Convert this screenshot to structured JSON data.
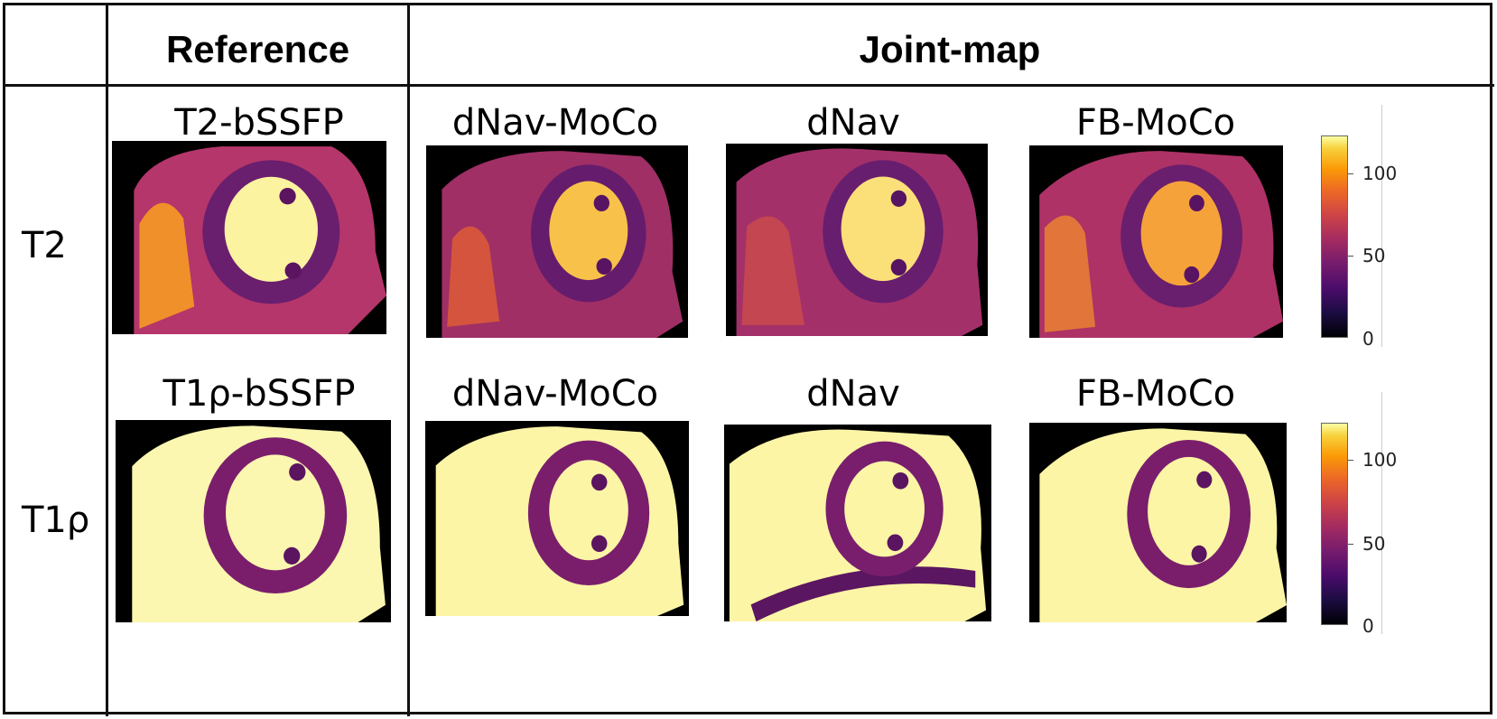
{
  "headers": {
    "reference": "Reference",
    "joint_map": "Joint-map"
  },
  "rows": [
    {
      "label": "T2",
      "panels": [
        "T2-bSSFP",
        "dNav-MoCo",
        "dNav",
        "FB-MoCo"
      ]
    },
    {
      "label": "T1ρ",
      "panels": [
        "T1ρ-bSSFP",
        "dNav-MoCo",
        "dNav",
        "FB-MoCo"
      ]
    }
  ],
  "colorbar": {
    "ticks": [
      "100",
      "50",
      "0"
    ],
    "colormap": "inferno",
    "colors": [
      "#000004",
      "#781c6d",
      "#ed6925",
      "#fcffa4"
    ]
  }
}
